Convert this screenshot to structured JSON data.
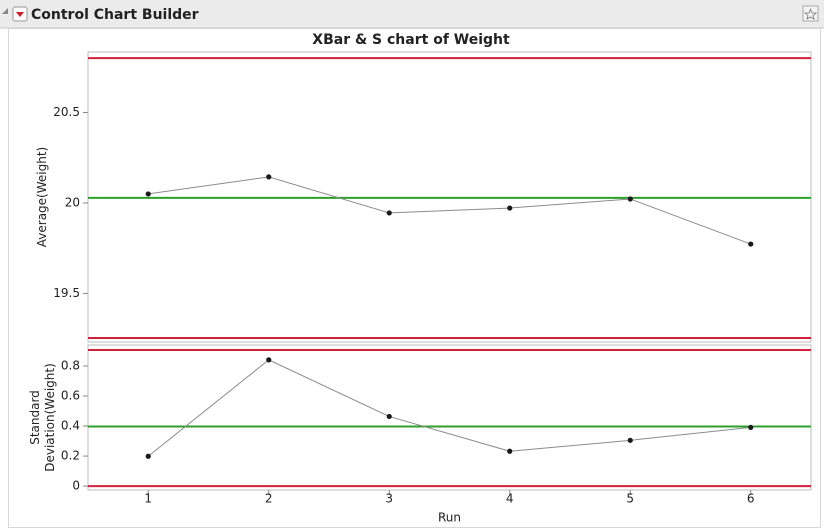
{
  "window": {
    "title": "Control Chart Builder"
  },
  "chart_data": [
    {
      "type": "line",
      "title": "XBar & S chart of Weight",
      "ylabel": [
        "Average(Weight)"
      ],
      "x": [
        1,
        2,
        3,
        4,
        5,
        6
      ],
      "values": [
        20.05,
        20.144,
        19.945,
        19.972,
        20.022,
        19.773
      ],
      "ucl": 20.8,
      "center": 20.028,
      "lcl": 19.254,
      "xlim": [
        0.5,
        6.5
      ],
      "ylim": [
        19.232,
        20.834
      ],
      "yticks": [
        19.5,
        20.0,
        20.5
      ],
      "line_color": "#8c8c8c",
      "point_color": "#1a1a1a",
      "limit_color": "#d0203a",
      "center_color": "#2ca02c"
    },
    {
      "type": "line",
      "ylabel": [
        "Standard",
        "Deviation(Weight)"
      ],
      "xlabel": "Run",
      "x": [
        1,
        2,
        3,
        4,
        5,
        6
      ],
      "values": [
        0.199,
        0.841,
        0.464,
        0.232,
        0.305,
        0.391
      ],
      "ucl": 0.907,
      "center": 0.397,
      "lcl": 0,
      "xlim": [
        0.5,
        6.5
      ],
      "ylim": [
        -0.026,
        0.94
      ],
      "yticks": [
        0,
        0.2,
        0.4,
        0.6,
        0.8
      ],
      "xticks": [
        1,
        2,
        3,
        4,
        5,
        6
      ],
      "line_color": "#8c8c8c",
      "point_color": "#1a1a1a",
      "limit_color": "#d0203a",
      "center_color": "#2ca02c"
    }
  ]
}
